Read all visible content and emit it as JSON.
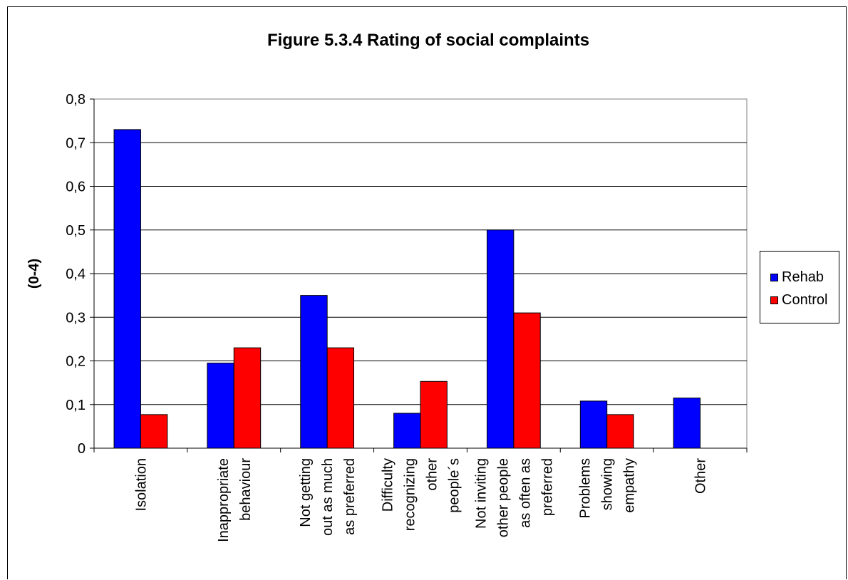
{
  "chart_data": {
    "type": "bar",
    "title": "Figure 5.3.4 Rating of social complaints",
    "ylabel": "(0-4)",
    "xlabel": "",
    "ylim": [
      0,
      0.8
    ],
    "yticks": [
      "0",
      "0,1",
      "0,2",
      "0,3",
      "0,4",
      "0,5",
      "0,6",
      "0,7",
      "0,8"
    ],
    "grid": true,
    "legend_position": "right",
    "categories": [
      [
        "Isolation"
      ],
      [
        "Inappropriate",
        "behaviour"
      ],
      [
        "Not getting",
        "out as much",
        "as preferred"
      ],
      [
        "Difficulty",
        "recognizing",
        "other",
        "people´s"
      ],
      [
        "Not inviting",
        "other people",
        "as often as",
        "preferred"
      ],
      [
        "Problems",
        "showing",
        "empathy"
      ],
      [
        "Other"
      ]
    ],
    "series": [
      {
        "name": "Rehab",
        "color": "#0000FF",
        "values": [
          0.73,
          0.195,
          0.35,
          0.08,
          0.5,
          0.108,
          0.115
        ]
      },
      {
        "name": "Control",
        "color": "#FF0000",
        "values": [
          0.077,
          0.23,
          0.23,
          0.153,
          0.31,
          0.077,
          0
        ]
      }
    ]
  }
}
